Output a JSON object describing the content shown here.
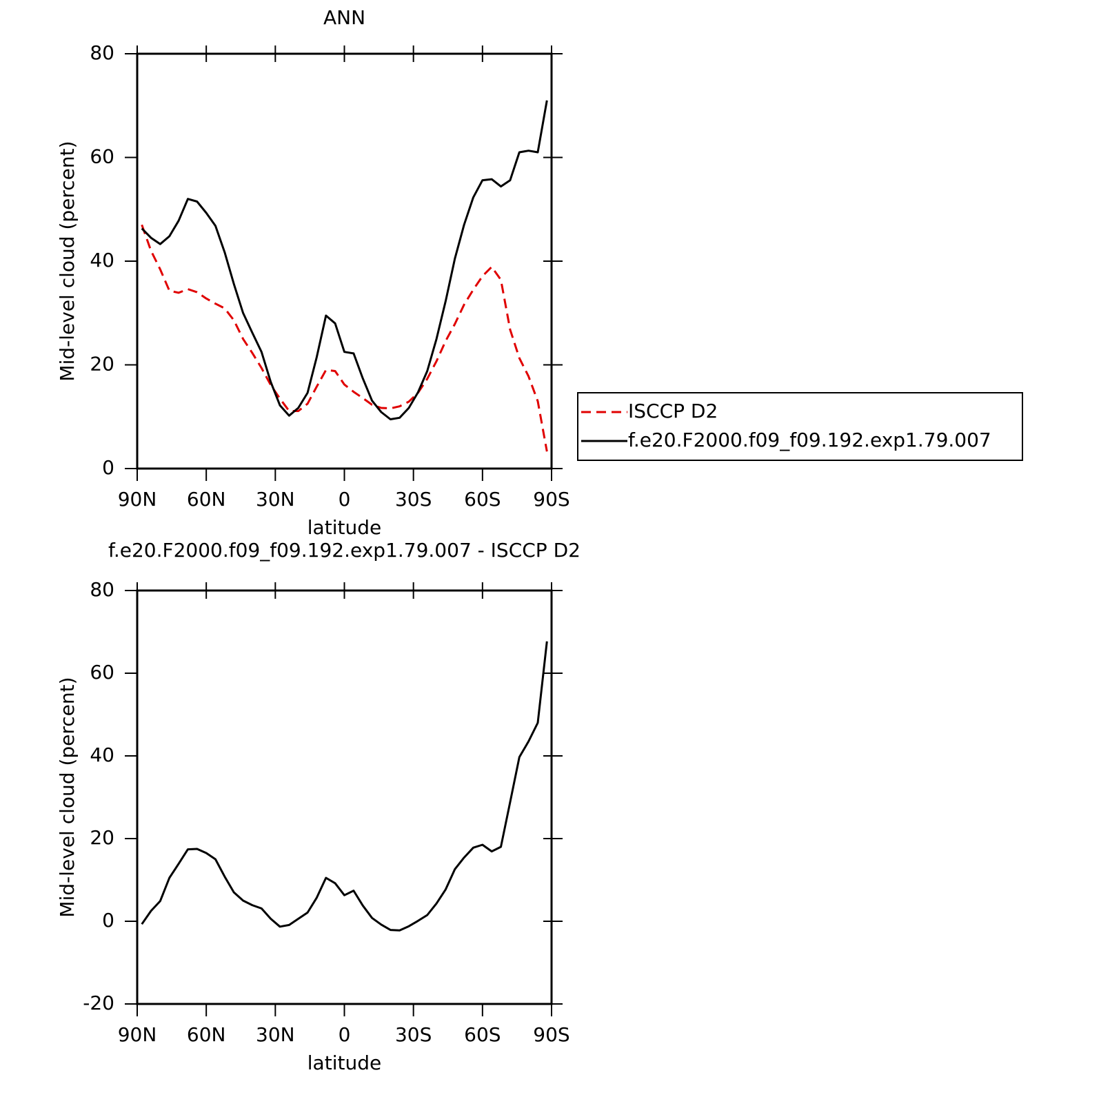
{
  "chart_data": [
    {
      "type": "line",
      "title": "ANN",
      "xlabel": "latitude",
      "ylabel": "Mid-level cloud (percent)",
      "x": [
        88,
        84,
        80,
        76,
        72,
        68,
        64,
        60,
        56,
        52,
        48,
        44,
        40,
        36,
        32,
        28,
        24,
        20,
        16,
        12,
        8,
        4,
        0,
        -4,
        -8,
        -12,
        -16,
        -20,
        -24,
        -28,
        -32,
        -36,
        -40,
        -44,
        -48,
        -52,
        -56,
        -60,
        -64,
        -68,
        -72,
        -76,
        -80,
        -84,
        -88
      ],
      "series": [
        {
          "name": "ISCCP D2",
          "color": "#e00000",
          "linestyle": "dashed",
          "values": [
            47.0,
            42.0,
            38.4,
            34.3,
            33.9,
            34.6,
            34.0,
            32.8,
            31.8,
            30.9,
            28.6,
            25.0,
            22.3,
            19.4,
            16.1,
            13.5,
            11.1,
            11.1,
            12.5,
            15.8,
            19.0,
            18.8,
            16.2,
            14.8,
            13.6,
            12.3,
            11.7,
            11.6,
            12.0,
            12.9,
            14.6,
            17.3,
            20.7,
            24.6,
            27.9,
            31.6,
            34.5,
            37.1,
            38.9,
            36.4,
            26.8,
            21.3,
            17.8,
            13.0,
            3.3
          ]
        },
        {
          "name": "f.e20.F2000.f09_f09.192.exp1.79.007",
          "color": "#000000",
          "linestyle": "solid",
          "values": [
            46.3,
            44.5,
            43.3,
            44.8,
            47.8,
            52.0,
            51.5,
            49.3,
            46.8,
            41.7,
            35.6,
            30.0,
            26.2,
            22.5,
            16.7,
            12.2,
            10.2,
            11.7,
            14.6,
            21.5,
            29.5,
            28.0,
            22.5,
            22.2,
            17.4,
            13.1,
            10.9,
            9.5,
            9.8,
            11.7,
            14.7,
            18.8,
            25.0,
            32.3,
            40.5,
            47.0,
            52.3,
            55.6,
            55.8,
            54.4,
            55.6,
            61.0,
            61.3,
            61.0,
            71.0
          ]
        }
      ],
      "xlim": [
        90,
        -90
      ],
      "xticks": [
        {
          "value": 90,
          "label": "90N"
        },
        {
          "value": 60,
          "label": "60N"
        },
        {
          "value": 30,
          "label": "30N"
        },
        0,
        {
          "value": -30,
          "label": "30S"
        },
        {
          "value": -60,
          "label": "60S"
        },
        {
          "value": -90,
          "label": "90S"
        }
      ],
      "ylim": [
        0,
        80
      ],
      "yticks": [
        0,
        20,
        40,
        60,
        80
      ],
      "legend": "outside-right"
    },
    {
      "type": "line",
      "title": "f.e20.F2000.f09_f09.192.exp1.79.007 - ISCCP D2",
      "xlabel": "latitude",
      "ylabel": "Mid-level cloud (percent)",
      "x": [
        88,
        84,
        80,
        76,
        72,
        68,
        64,
        60,
        56,
        52,
        48,
        44,
        40,
        36,
        32,
        28,
        24,
        20,
        16,
        12,
        8,
        4,
        0,
        -4,
        -8,
        -12,
        -16,
        -20,
        -24,
        -28,
        -32,
        -36,
        -40,
        -44,
        -48,
        -52,
        -56,
        -60,
        -64,
        -68,
        -72,
        -76,
        -80,
        -84,
        -88
      ],
      "series": [
        {
          "color": "#000000",
          "linestyle": "solid",
          "values": [
            -0.7,
            2.5,
            4.9,
            10.5,
            13.9,
            17.4,
            17.5,
            16.5,
            15.0,
            10.8,
            7.0,
            5.0,
            3.9,
            3.1,
            0.6,
            -1.3,
            -0.9,
            0.6,
            2.1,
            5.7,
            10.5,
            9.2,
            6.3,
            7.4,
            3.8,
            0.8,
            -0.8,
            -2.1,
            -2.2,
            -1.2,
            0.1,
            1.5,
            4.3,
            7.7,
            12.6,
            15.4,
            17.8,
            18.5,
            16.9,
            18.0,
            28.8,
            39.7,
            43.5,
            48.0,
            67.7
          ]
        }
      ],
      "xlim": [
        90,
        -90
      ],
      "xticks": [
        {
          "value": 90,
          "label": "90N"
        },
        {
          "value": 60,
          "label": "60N"
        },
        {
          "value": 30,
          "label": "30N"
        },
        0,
        {
          "value": -30,
          "label": "30S"
        },
        {
          "value": -60,
          "label": "60S"
        },
        {
          "value": -90,
          "label": "90S"
        }
      ],
      "ylim": [
        -20,
        80
      ],
      "yticks": [
        -20,
        0,
        20,
        40,
        60,
        80
      ]
    }
  ]
}
